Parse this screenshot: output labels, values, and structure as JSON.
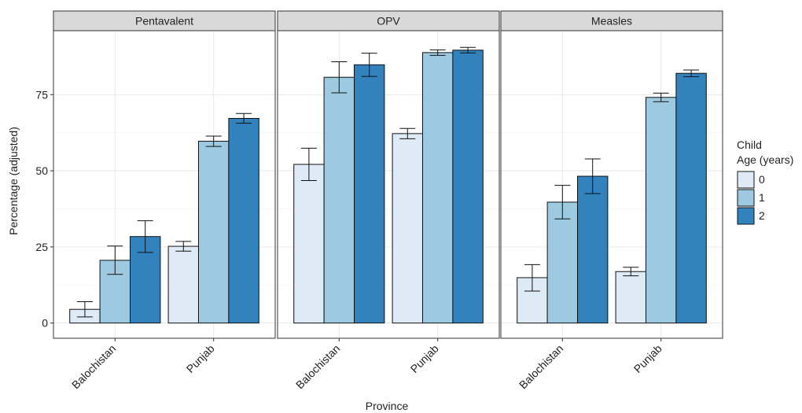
{
  "chart_data": {
    "type": "bar",
    "xlabel": "Province",
    "ylabel": "Percentage (adjusted)",
    "ylim": [
      -5,
      96
    ],
    "yticks": [
      0,
      25,
      50,
      75
    ],
    "grid": true,
    "legend_placement": "right",
    "legend_title": [
      "Child",
      "Age (years)"
    ],
    "categories": [
      "Balochistan",
      "Punjab"
    ],
    "series_names": [
      "0",
      "1",
      "2"
    ],
    "colors": [
      "#deebf7",
      "#9ecae1",
      "#3182bd"
    ],
    "panels": [
      {
        "name": "Pentavalent",
        "series": [
          {
            "name": "0",
            "values": [
              4.5,
              25.2
            ],
            "lower": [
              2.0,
              23.6
            ],
            "upper": [
              7.0,
              26.8
            ]
          },
          {
            "name": "1",
            "values": [
              20.6,
              59.7
            ],
            "lower": [
              16.0,
              58.0
            ],
            "upper": [
              25.3,
              61.4
            ]
          },
          {
            "name": "2",
            "values": [
              28.4,
              67.2
            ],
            "lower": [
              23.2,
              65.6
            ],
            "upper": [
              33.6,
              68.8
            ]
          }
        ]
      },
      {
        "name": "OPV",
        "series": [
          {
            "name": "0",
            "values": [
              52.1,
              62.2
            ],
            "lower": [
              46.8,
              60.5
            ],
            "upper": [
              57.4,
              63.9
            ]
          },
          {
            "name": "1",
            "values": [
              80.7,
              88.8
            ],
            "lower": [
              75.6,
              87.9
            ],
            "upper": [
              85.8,
              89.7
            ]
          },
          {
            "name": "2",
            "values": [
              84.8,
              89.6
            ],
            "lower": [
              81.0,
              88.7
            ],
            "upper": [
              88.6,
              90.5
            ]
          }
        ]
      },
      {
        "name": "Measles",
        "series": [
          {
            "name": "0",
            "values": [
              14.9,
              16.9
            ],
            "lower": [
              10.5,
              15.5
            ],
            "upper": [
              19.2,
              18.3
            ]
          },
          {
            "name": "1",
            "values": [
              39.7,
              74.1
            ],
            "lower": [
              34.2,
              72.7
            ],
            "upper": [
              45.2,
              75.5
            ]
          },
          {
            "name": "2",
            "values": [
              48.2,
              82.0
            ],
            "lower": [
              42.5,
              80.9
            ],
            "upper": [
              53.9,
              83.1
            ]
          }
        ]
      }
    ]
  }
}
